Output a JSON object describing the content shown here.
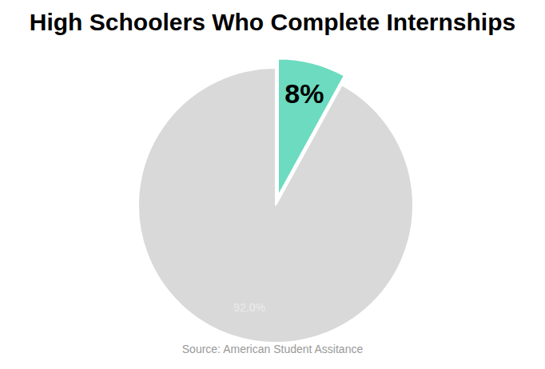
{
  "chart_data": {
    "type": "pie",
    "title": "High Schoolers Who Complete Internships",
    "values": [
      8,
      92
    ],
    "value_labels": [
      "8%",
      "92.0%"
    ],
    "colors": [
      "#6cdbbf",
      "#d9d9d9"
    ],
    "data_labels": true,
    "source": "Source: American Student Assitance"
  }
}
